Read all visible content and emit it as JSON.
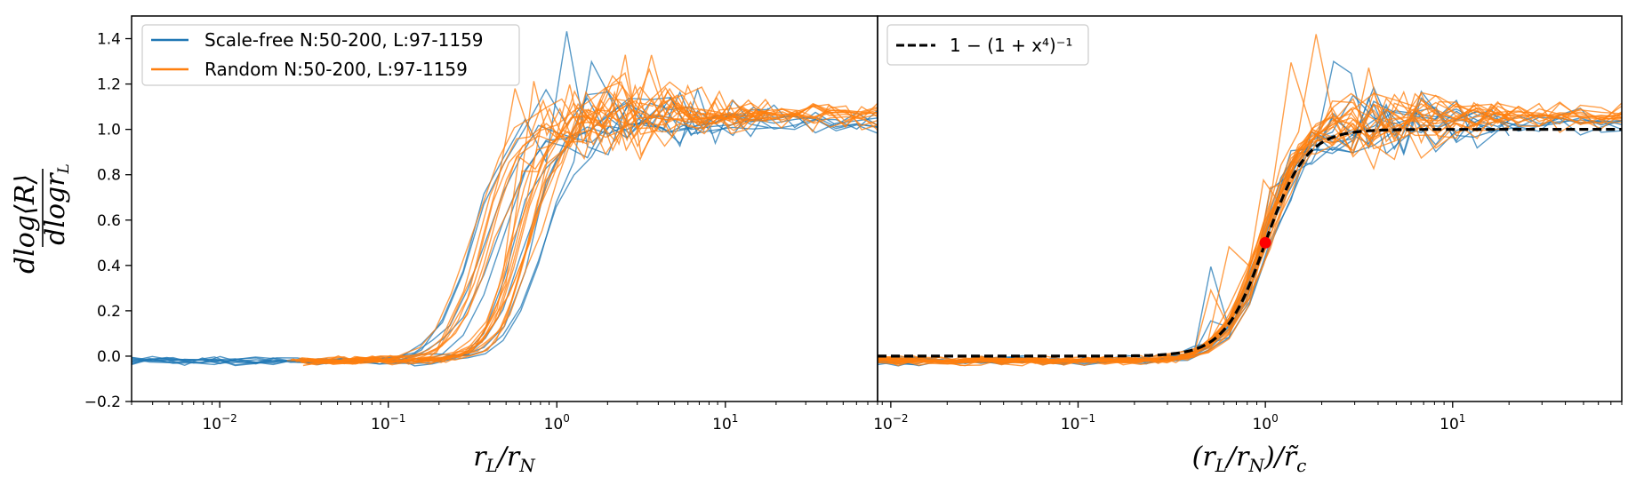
{
  "chart_data": [
    {
      "type": "line",
      "panel": "left",
      "xscale": "log",
      "xlim": [
        0.003,
        80
      ],
      "ylim": [
        -0.2,
        1.5
      ],
      "xlabel": "r_L/r_N",
      "ylabel": "dlog⟨R⟩ / dlogr_L",
      "xtick_labels": [
        "10^-2",
        "10^-1",
        "10^0",
        "10^1"
      ],
      "ytick_labels": [
        "−0.2",
        "0.0",
        "0.2",
        "0.4",
        "0.6",
        "0.8",
        "1.0",
        "1.2",
        "1.4"
      ],
      "ytick_values": [
        -0.2,
        0.0,
        0.2,
        0.4,
        0.6,
        0.8,
        1.0,
        1.2,
        1.4
      ],
      "legend": {
        "placement": "top-left",
        "entries": [
          {
            "label": "Scale-free N:50-200, L:97-1159",
            "color": "#1f77b4"
          },
          {
            "label": "Random N:50-200, L:97-1159",
            "color": "#ff7f0e"
          }
        ]
      },
      "series": [
        {
          "family": "Scale-free",
          "color": "#1f77b4",
          "curves": 10,
          "x_range": [
            0.003,
            80
          ],
          "midpoint_x": 0.55,
          "plateau": 1.03,
          "baseline": -0.02
        },
        {
          "family": "Random",
          "color": "#ff7f0e",
          "curves": 20,
          "x_range": [
            0.03,
            80
          ],
          "midpoint_x": 0.45,
          "plateau": 1.06,
          "baseline": -0.02
        }
      ]
    },
    {
      "type": "line",
      "panel": "right",
      "xscale": "log",
      "xlim": [
        0.0085,
        80
      ],
      "ylim": [
        -0.2,
        1.5
      ],
      "xlabel": "(r_L/r_N)/r̃_c",
      "xtick_labels": [
        "10^-2",
        "10^-1",
        "10^0",
        "10^1"
      ],
      "legend": {
        "placement": "top-left",
        "entries": [
          {
            "label": "1 − (1 + x⁴)⁻¹",
            "color": "#000000",
            "style": "dashed"
          }
        ]
      },
      "reference_curve": {
        "formula": "1-(1+x^4)^-1",
        "x_range": [
          0.0085,
          80
        ]
      },
      "marker_point": {
        "x": 1.0,
        "y": 0.5,
        "color": "#ff0000"
      },
      "series": [
        {
          "family": "Scale-free",
          "color": "#1f77b4",
          "curves": 10,
          "midpoint_x": 1.0,
          "plateau": 1.03
        },
        {
          "family": "Random",
          "color": "#ff7f0e",
          "curves": 20,
          "midpoint_x": 1.0,
          "plateau": 1.06
        }
      ]
    }
  ]
}
